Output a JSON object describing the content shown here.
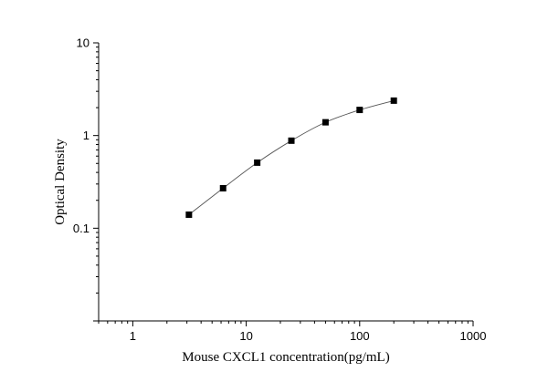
{
  "chart_data": {
    "type": "scatter",
    "title": "",
    "xlabel": "Mouse CXCL1 concentration(pg/mL)",
    "ylabel": "Optical Density",
    "x_scale": "log",
    "y_scale": "log",
    "xlim": [
      0.5,
      1000
    ],
    "ylim": [
      0.01,
      10
    ],
    "x_ticks": [
      {
        "value": 1,
        "label": "1"
      },
      {
        "value": 10,
        "label": "10"
      },
      {
        "value": 100,
        "label": "100"
      },
      {
        "value": 1000,
        "label": "1000"
      }
    ],
    "y_ticks": [
      {
        "value": 0.1,
        "label": "0.1"
      },
      {
        "value": 1,
        "label": "1"
      },
      {
        "value": 10,
        "label": "10"
      }
    ],
    "grid": false,
    "legend": "none",
    "colors": {
      "marker": "#000000",
      "line": "#555555",
      "axis": "#000000"
    },
    "series": [
      {
        "marker": "square",
        "connect": "smooth-line",
        "x": [
          3.125,
          6.25,
          12.5,
          25,
          50,
          100,
          200
        ],
        "y": [
          0.14,
          0.27,
          0.51,
          0.88,
          1.39,
          1.89,
          2.38
        ]
      }
    ]
  }
}
